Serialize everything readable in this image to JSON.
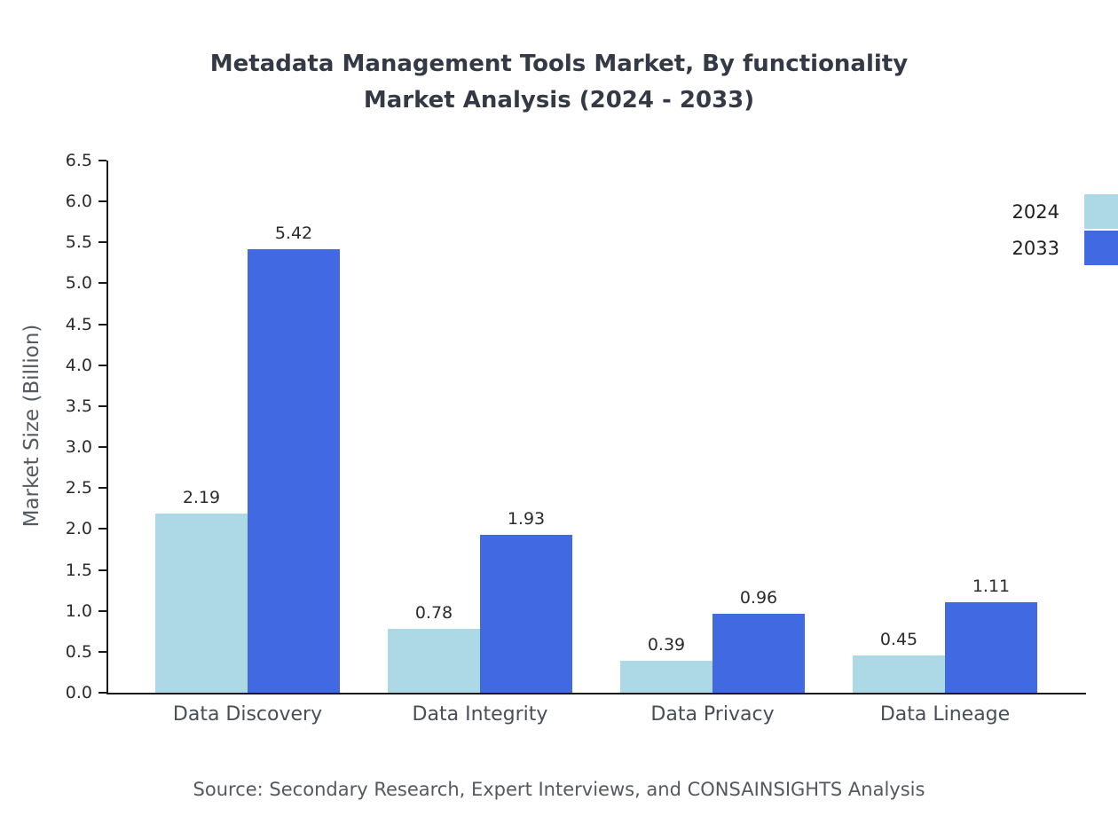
{
  "chart_data": {
    "type": "bar",
    "title": "Metadata Management Tools Market, By functionality",
    "subtitle": "Market Analysis (2024 - 2033)",
    "categories": [
      "Data Discovery",
      "Data Integrity",
      "Data Privacy",
      "Data Lineage"
    ],
    "series": [
      {
        "name": "2024",
        "color": "#add8e6",
        "values": [
          2.19,
          0.78,
          0.39,
          0.45
        ]
      },
      {
        "name": "2033",
        "color": "#4169e1",
        "values": [
          5.42,
          1.93,
          0.96,
          1.11
        ]
      }
    ],
    "ylabel": "Market Size (Billion)",
    "ylim": [
      0,
      6.5
    ],
    "ytick_step": 0.5,
    "grid": false,
    "legend_position": "top-right",
    "source": "Source: Secondary Research, Expert Interviews, and CONSAINSIGHTS Analysis"
  }
}
